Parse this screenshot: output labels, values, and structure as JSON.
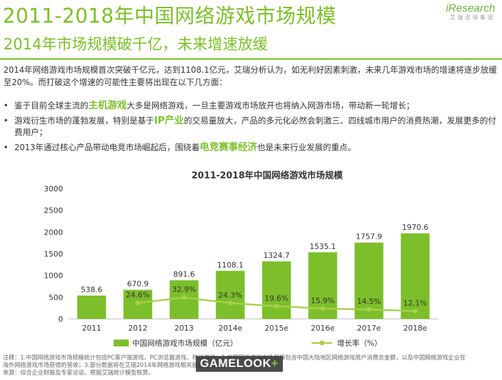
{
  "header": {
    "title": "2011-2018年中国网络游戏市场规模",
    "subtitle": "2014年市场规模破千亿，未来增速放缓",
    "logo": "iResearch",
    "logo_sub": "艾瑞咨询集团"
  },
  "intro": "2014年网络游戏市场规模首次突破千亿元，达到1108.1亿元，艾瑞分析认为，如无利好因素刺激，未来几年游戏市场的增速将逐步放缓至20%。而打破这个增速的可能性主要将出现在以下几方面：",
  "bullets": [
    {
      "pre": "鉴于目前全球主流的",
      "hl": "主机游戏",
      "post": "大多是网络游戏，一旦主要游戏市场放开也将纳入网游市场，带动新一轮增长；"
    },
    {
      "pre": "游戏衍生市场的蓬勃发展，特别是基于",
      "hl": "IP产业",
      "post": "的交易量放大，产品的多元化必然会刺激三、四线城市用户的消费热潮，发展更多的付费用户；"
    },
    {
      "pre": "2013年通过核心产品带动电竞市场崛起后，围绕着",
      "hl": "电竞赛事经济",
      "post": "也是未来行业发展的重点。"
    }
  ],
  "chart_data": {
    "type": "bar",
    "title": "2011-2018年中国网络游戏市场规模",
    "categories": [
      "2011",
      "2012",
      "2013",
      "2014e",
      "2015e",
      "2016e",
      "2017e",
      "2018e"
    ],
    "series": [
      {
        "name": "中国网络游戏市场规模（亿元）",
        "type": "bar",
        "values": [
          538.6,
          670.9,
          891.6,
          1108.1,
          1324.7,
          1535.1,
          1757.9,
          1970.6
        ],
        "labels": [
          "538.6",
          "670.9",
          "891.6",
          "1108.1",
          "1324.7",
          "1535.1",
          "1757.9",
          "1970.6"
        ]
      },
      {
        "name": "增长率（%）",
        "type": "line",
        "values": [
          null,
          24.6,
          32.9,
          24.3,
          19.6,
          15.9,
          14.5,
          12.1
        ],
        "labels": [
          null,
          "24.6%",
          "32.9%",
          "24.3%",
          "19.6%",
          "15.9%",
          "14.5%",
          "12.1%"
        ]
      }
    ],
    "yticks": [
      "0",
      "500",
      "1000",
      "1500",
      "2000",
      "2500",
      "3000"
    ],
    "ylim": [
      0,
      3000
    ],
    "grid": false,
    "legend": "bottom"
  },
  "footnote": {
    "line1": "注释：1.中国网络游戏市场规模统计包括PC客户端游戏、PC浏览器游戏、移动游戏；2.中国网络游戏市场规模包含中国大陆地区网络游戏用户消费总金额，以及中国网络游戏企业在",
    "line2": "海外网络游戏市场获得的营收；3.部分数据将在艾瑞2014年网络游戏相关报告中做出调整。",
    "line3": "来源：综合企业财报及专家访谈，根据艾瑞统计模型核算。"
  },
  "watermark": {
    "text": "GAMELOOK",
    "plus": "+"
  },
  "colors": {
    "accent": "#7cbf2a",
    "bar": "#7cbf2a",
    "line": "#a6d14d"
  }
}
